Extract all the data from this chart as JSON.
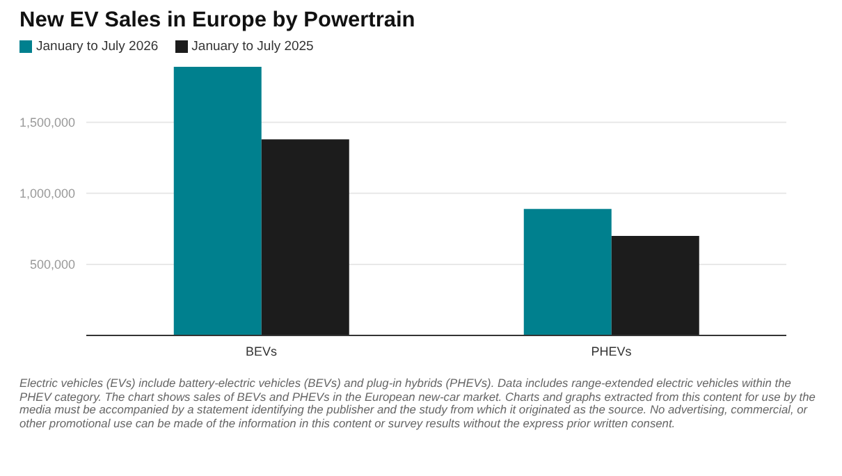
{
  "chart_data": {
    "type": "bar",
    "title": "New EV Sales in Europe by Powertrain",
    "categories": [
      "BEVs",
      "PHEVs"
    ],
    "series": [
      {
        "name": "January to July 2026",
        "color": "#00808e",
        "values": [
          1890000,
          890000
        ]
      },
      {
        "name": "January to July 2025",
        "color": "#1c1c1c",
        "values": [
          1380000,
          700000
        ]
      }
    ],
    "ylim": [
      0,
      1900000
    ],
    "yticks": [
      {
        "value": 500000,
        "label": "500,000"
      },
      {
        "value": 1000000,
        "label": "1,000,000"
      },
      {
        "value": 1500000,
        "label": "1,500,000"
      }
    ],
    "grid": "y",
    "legend": "top left",
    "annotations": [
      "Electric vehicles (EVs) include battery-electric vehicles (BEVs) and plug-in hybrids (PHEVs). Data includes range-extended electric vehicles within the PHEV category. The chart shows sales of BEVs and PHEVs in the European new-car market. Charts and graphs extracted from this content for use by the media must be accompanied by a statement identifying the publisher and the study from which it originated as the source. No advertising, commercial, or other promotional use can be made of the information in this content or survey results without the express prior written consent."
    ]
  }
}
